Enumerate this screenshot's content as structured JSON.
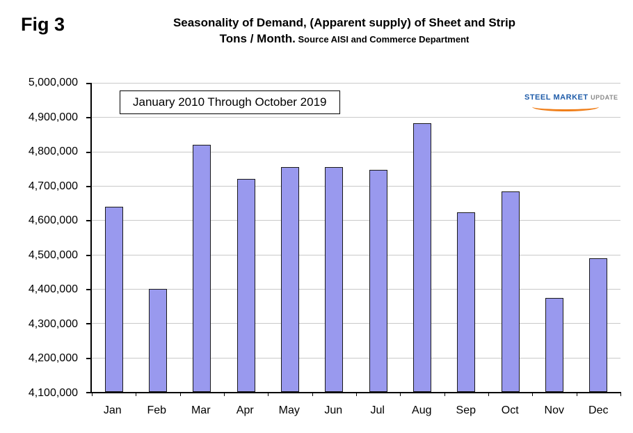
{
  "fig_label": "Fig 3",
  "title": {
    "line1": "Seasonality of Demand, (Apparent supply) of Sheet and Strip",
    "line2_main": "Tons / Month.",
    "line2_source": " Source AISI and Commerce Department"
  },
  "annotation": "January 2010 Through October 2019",
  "logo": {
    "steel": "STEEL",
    "market": "MARKET",
    "update": "UPDATE",
    "blue": "#1f5ca9",
    "orange": "#f07f1a"
  },
  "chart_data": {
    "type": "bar",
    "title": "Seasonality of Demand, (Apparent supply) of Sheet and Strip Tons / Month",
    "source": "AISI and Commerce Department",
    "categories": [
      "Jan",
      "Feb",
      "Mar",
      "Apr",
      "May",
      "Jun",
      "Jul",
      "Aug",
      "Sep",
      "Oct",
      "Nov",
      "Dec"
    ],
    "values": [
      4640000,
      4400000,
      4820000,
      4720000,
      4755000,
      4755000,
      4746000,
      4883000,
      4622000,
      4683000,
      4373000,
      4490000
    ],
    "xlabel": "",
    "ylabel": "",
    "ylim": [
      4100000,
      5000000
    ],
    "ytick_step": 100000,
    "grid": true,
    "legend": "none",
    "bar_color": "#9999ee",
    "bar_border": "#1a1a1a",
    "gridline_color": "#c9c9c9"
  }
}
